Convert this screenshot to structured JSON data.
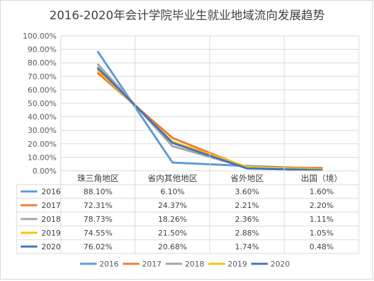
{
  "chart_data": {
    "type": "line",
    "title": "2016-2020年会计学院毕业生就业地域流向发展趋势",
    "categories": [
      "珠三角地区",
      "省内其他地区",
      "省外地区",
      "出国（境）"
    ],
    "ylim": [
      0,
      100
    ],
    "yticks": [
      "0.00%",
      "10.00%",
      "20.00%",
      "30.00%",
      "40.00%",
      "50.00%",
      "60.00%",
      "70.00%",
      "80.00%",
      "90.00%",
      "100.00%"
    ],
    "grid": true,
    "legend_position": "bottom",
    "series": [
      {
        "name": "2016",
        "color": "#5b9bd5",
        "values": [
          88.1,
          6.1,
          3.6,
          1.6
        ],
        "labels": [
          "88.10%",
          "6.10%",
          "3.60%",
          "1.60%"
        ]
      },
      {
        "name": "2017",
        "color": "#ed7d31",
        "values": [
          72.31,
          24.37,
          2.21,
          2.2
        ],
        "labels": [
          "72.31%",
          "24.37%",
          "2.21%",
          "2.20%"
        ]
      },
      {
        "name": "2018",
        "color": "#a5a5a5",
        "values": [
          78.73,
          18.26,
          2.36,
          1.11
        ],
        "labels": [
          "78.73%",
          "18.26%",
          "2.36%",
          "1.11%"
        ]
      },
      {
        "name": "2019",
        "color": "#ffc000",
        "values": [
          74.55,
          21.5,
          2.88,
          1.05
        ],
        "labels": [
          "74.55%",
          "21.50%",
          "2.88%",
          "1.05%"
        ]
      },
      {
        "name": "2020",
        "color": "#4472c4",
        "values": [
          76.02,
          20.68,
          1.74,
          0.48
        ],
        "labels": [
          "76.02%",
          "20.68%",
          "1.74%",
          "0.48%"
        ]
      }
    ]
  }
}
